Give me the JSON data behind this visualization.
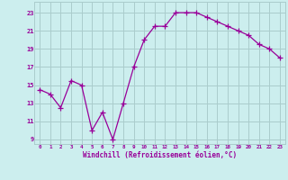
{
  "x": [
    0,
    1,
    2,
    3,
    4,
    5,
    6,
    7,
    8,
    9,
    10,
    11,
    12,
    13,
    14,
    15,
    16,
    17,
    18,
    19,
    20,
    21,
    22,
    23
  ],
  "y": [
    14.5,
    14.0,
    12.5,
    15.5,
    15.0,
    10.0,
    12.0,
    9.0,
    13.0,
    17.0,
    20.0,
    21.5,
    21.5,
    23.0,
    23.0,
    23.0,
    22.5,
    22.0,
    21.5,
    21.0,
    20.5,
    19.5,
    19.0,
    18.0
  ],
  "line_color": "#990099",
  "marker": "+",
  "marker_size": 4,
  "bg_color": "#cceeee",
  "grid_color": "#aacccc",
  "xlabel": "Windchill (Refroidissement éolien,°C)",
  "xlabel_color": "#990099",
  "ylabel_ticks": [
    9,
    11,
    13,
    15,
    17,
    19,
    21,
    23
  ],
  "xlim": [
    -0.5,
    23.5
  ],
  "ylim": [
    8.5,
    24.2
  ],
  "xticks": [
    0,
    1,
    2,
    3,
    4,
    5,
    6,
    7,
    8,
    9,
    10,
    11,
    12,
    13,
    14,
    15,
    16,
    17,
    18,
    19,
    20,
    21,
    22,
    23
  ]
}
